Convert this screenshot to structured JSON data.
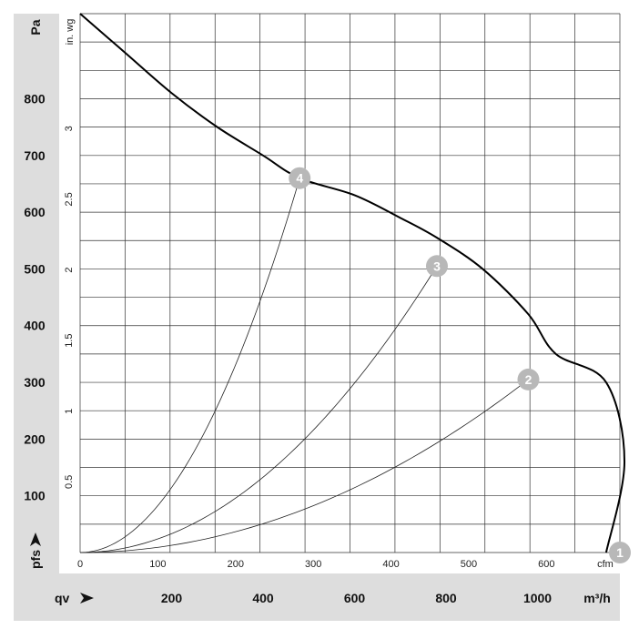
{
  "chart_data": {
    "type": "line",
    "left_axis": {
      "unit": "Pa",
      "ticks": [
        "100",
        "200",
        "300",
        "400",
        "500",
        "600",
        "700",
        "800"
      ],
      "range": [
        0,
        950
      ]
    },
    "inner_axis": {
      "unit": "in. wg",
      "ticks": [
        "0.5",
        "1",
        "1.5",
        "2",
        "2.5",
        "3"
      ]
    },
    "bottom_axis": {
      "unit": "m³/h",
      "label": "qv",
      "ticks": [
        "200",
        "400",
        "600",
        "800",
        "1000"
      ],
      "range": [
        0,
        1180
      ]
    },
    "cfm_axis": {
      "unit": "cfm",
      "ticks": [
        "0",
        "100",
        "200",
        "300",
        "400",
        "500",
        "600"
      ]
    },
    "pressure_label": "pfs",
    "fan_curve": {
      "points": [
        [
          0,
          950
        ],
        [
          100,
          880
        ],
        [
          200,
          810
        ],
        [
          300,
          750
        ],
        [
          400,
          700
        ],
        [
          480,
          660
        ],
        [
          600,
          630
        ],
        [
          700,
          590
        ],
        [
          780,
          555
        ],
        [
          880,
          500
        ],
        [
          980,
          420
        ],
        [
          1040,
          350
        ],
        [
          1150,
          300
        ],
        [
          1190,
          160
        ],
        [
          1150,
          0
        ]
      ]
    },
    "operating_points": [
      {
        "id": "1",
        "x": 1180,
        "y": 0
      },
      {
        "id": "2",
        "x": 980,
        "y": 305
      },
      {
        "id": "3",
        "x": 780,
        "y": 505
      },
      {
        "id": "4",
        "x": 480,
        "y": 660
      }
    ],
    "system_curves": [
      {
        "to_point": "2",
        "label": "2"
      },
      {
        "to_point": "3",
        "label": "3"
      },
      {
        "to_point": "4",
        "label": "4"
      }
    ],
    "grid": true,
    "marker_color": "#b8b8b8"
  }
}
